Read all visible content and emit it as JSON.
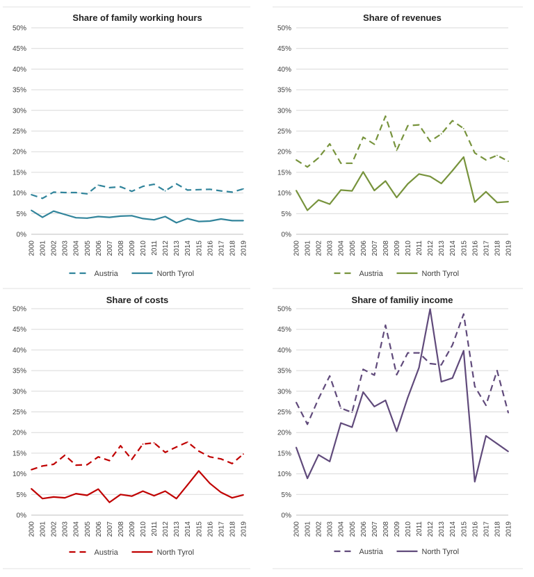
{
  "chart_data": [
    {
      "type": "line",
      "title": "Share of family working hours",
      "color": "#31849B",
      "ylim": [
        0,
        50
      ],
      "yticks": [
        "0%",
        "5%",
        "10%",
        "15%",
        "20%",
        "25%",
        "30%",
        "35%",
        "40%",
        "45%",
        "50%"
      ],
      "x": [
        "2000",
        "2001",
        "2002",
        "2003",
        "2004",
        "2005",
        "2006",
        "2007",
        "2008",
        "2009",
        "2010",
        "2011",
        "2012",
        "2013",
        "2014",
        "2015",
        "2016",
        "2017",
        "2018",
        "2019"
      ],
      "grid": true,
      "legend": "bottom",
      "series": [
        {
          "name": "Austria",
          "dashed": true,
          "values": [
            9.6,
            8.7,
            10.2,
            10.1,
            10.1,
            9.8,
            11.9,
            11.3,
            11.5,
            10.4,
            11.6,
            12.1,
            10.5,
            12.2,
            10.7,
            10.8,
            10.9,
            10.5,
            10.2,
            11.0
          ]
        },
        {
          "name": "North Tyrol",
          "dashed": false,
          "values": [
            5.8,
            4.1,
            5.6,
            4.8,
            4.0,
            3.9,
            4.3,
            4.1,
            4.4,
            4.5,
            3.8,
            3.5,
            4.3,
            2.8,
            3.8,
            3.1,
            3.2,
            3.7,
            3.3,
            3.3
          ]
        }
      ]
    },
    {
      "type": "line",
      "title": "Share of revenues",
      "color": "#77933C",
      "ylim": [
        0,
        50
      ],
      "yticks": [
        "0%",
        "5%",
        "10%",
        "15%",
        "20%",
        "25%",
        "30%",
        "35%",
        "40%",
        "45%",
        "50%"
      ],
      "x": [
        "2000",
        "2001",
        "2002",
        "2003",
        "2004",
        "2005",
        "2006",
        "2007",
        "2008",
        "2009",
        "2010",
        "2011",
        "2012",
        "2013",
        "2014",
        "2015",
        "2016",
        "2017",
        "2018",
        "2019"
      ],
      "grid": true,
      "legend": "bottom",
      "series": [
        {
          "name": "Austria",
          "dashed": true,
          "values": [
            18.0,
            16.3,
            18.5,
            21.9,
            17.2,
            17.2,
            23.5,
            21.8,
            28.6,
            20.3,
            26.3,
            26.5,
            22.5,
            24.3,
            27.5,
            25.6,
            19.7,
            18.0,
            19.1,
            17.7
          ]
        },
        {
          "name": "North Tyrol",
          "dashed": false,
          "values": [
            10.6,
            5.8,
            8.3,
            7.3,
            10.7,
            10.5,
            15.1,
            10.6,
            12.9,
            8.9,
            12.2,
            14.6,
            14.0,
            12.3,
            15.4,
            18.7,
            7.8,
            10.3,
            7.7,
            7.9
          ]
        }
      ]
    },
    {
      "type": "line",
      "title": "Share of costs",
      "color": "#C00000",
      "ylim": [
        0,
        50
      ],
      "yticks": [
        "0%",
        "5%",
        "10%",
        "15%",
        "20%",
        "25%",
        "30%",
        "35%",
        "40%",
        "45%",
        "50%"
      ],
      "x": [
        "2000",
        "2001",
        "2002",
        "2003",
        "2004",
        "2005",
        "2006",
        "2007",
        "2008",
        "2009",
        "2010",
        "2011",
        "2012",
        "2013",
        "2014",
        "2015",
        "2016",
        "2017",
        "2018",
        "2019"
      ],
      "grid": true,
      "legend": "bottom",
      "series": [
        {
          "name": "Austria",
          "dashed": true,
          "values": [
            11.0,
            11.9,
            12.3,
            14.5,
            12.1,
            12.2,
            14.1,
            13.2,
            16.8,
            13.5,
            17.2,
            17.5,
            15.2,
            16.5,
            17.7,
            15.5,
            14.1,
            13.6,
            12.5,
            14.8
          ]
        },
        {
          "name": "North Tyrol",
          "dashed": false,
          "values": [
            6.4,
            4.0,
            4.4,
            4.2,
            5.2,
            4.8,
            6.3,
            3.1,
            5.0,
            4.6,
            5.8,
            4.7,
            5.8,
            4.0,
            7.3,
            10.7,
            7.7,
            5.5,
            4.2,
            4.9
          ]
        }
      ]
    },
    {
      "type": "line",
      "title": "Share of familiy income",
      "color": "#604A7B",
      "ylim": [
        0,
        50
      ],
      "yticks": [
        "0%",
        "5%",
        "10%",
        "15%",
        "20%",
        "25%",
        "30%",
        "35%",
        "40%",
        "45%",
        "50%"
      ],
      "x": [
        "2000",
        "2001",
        "2002",
        "2003",
        "2004",
        "2005",
        "2006",
        "2007",
        "2008",
        "2009",
        "2010",
        "2011",
        "2012",
        "2013",
        "2014",
        "2015",
        "2016",
        "2017",
        "2018",
        "2019"
      ],
      "grid": true,
      "legend": "bottom",
      "series": [
        {
          "name": "Austria",
          "dashed": true,
          "values": [
            27.3,
            22.0,
            28.2,
            33.7,
            25.9,
            24.9,
            35.3,
            33.9,
            46.0,
            34.0,
            39.3,
            39.3,
            36.7,
            36.4,
            41.2,
            48.7,
            31.2,
            26.6,
            35.0,
            24.8
          ]
        },
        {
          "name": "North Tyrol",
          "dashed": false,
          "values": [
            16.4,
            8.9,
            14.6,
            13.0,
            22.3,
            21.3,
            29.8,
            26.3,
            27.8,
            20.3,
            28.5,
            35.7,
            49.9,
            32.3,
            33.2,
            39.8,
            8.1,
            19.2,
            17.3,
            15.4
          ]
        }
      ]
    }
  ]
}
